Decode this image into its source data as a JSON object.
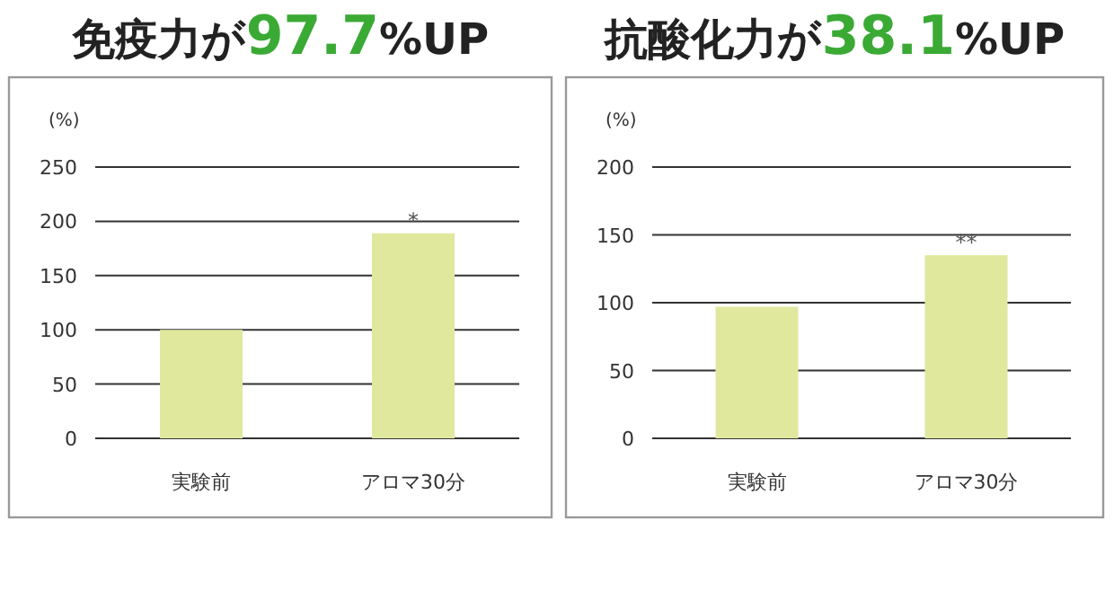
{
  "chart_data": [
    {
      "type": "bar",
      "title": "免疫力が97.7%UP",
      "ylabel": "(%)",
      "categories": [
        "実験前",
        "アロマ30分"
      ],
      "values": [
        100,
        189
      ],
      "color": "#e0e89e",
      "ylim": [
        0,
        250
      ],
      "yticks": [
        0,
        50,
        100,
        150,
        200,
        250
      ],
      "grid": "y",
      "annotations": [
        {
          "text": "*",
          "x": "アロマ30分",
          "y": 189
        }
      ]
    },
    {
      "type": "bar",
      "title": "抗酸化力が38.1%UP",
      "ylabel": "(%)",
      "categories": [
        "実験前",
        "アロマ30分"
      ],
      "values": [
        97,
        135
      ],
      "color": "#e0e89e",
      "ylim": [
        0,
        200
      ],
      "yticks": [
        0,
        50,
        100,
        150,
        200
      ],
      "grid": "y",
      "annotations": [
        {
          "text": "**",
          "x": "アロマ30分",
          "y": 135
        }
      ]
    }
  ]
}
